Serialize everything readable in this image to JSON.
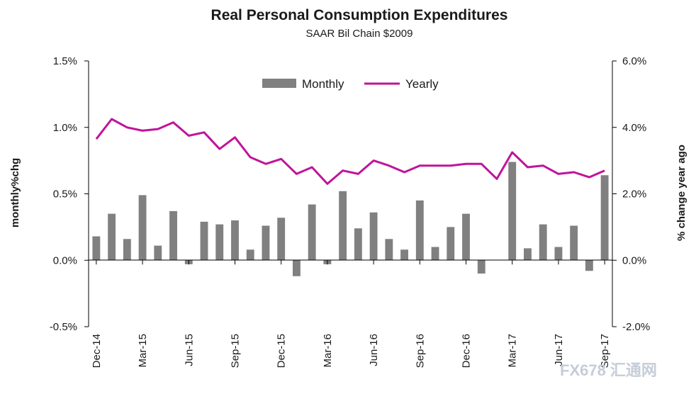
{
  "chart_data": {
    "type": "bar+line",
    "title": "Real Personal Consumption  Expenditures",
    "subtitle": "SAAR Bil Chain $2009",
    "ylabel_left": "monthly%chg",
    "ylabel_right": "% change year ago",
    "ylim_left": [
      -0.5,
      1.5
    ],
    "ylim_right": [
      -2.0,
      6.0
    ],
    "yticks_left": [
      "-0.5%",
      "0.0%",
      "0.5%",
      "1.0%",
      "1.5%"
    ],
    "yticks_right": [
      "-2.0%",
      "0.0%",
      "2.0%",
      "4.0%",
      "6.0%"
    ],
    "xtick_labels": [
      "Dec-14",
      "Mar-15",
      "Jun-15",
      "Sep-15",
      "Dec-15",
      "Mar-16",
      "Jun-16",
      "Sep-16",
      "Dec-16",
      "Mar-17",
      "Jun-17",
      "Sep-17"
    ],
    "categories": [
      "Dec-14",
      "Jan-15",
      "Feb-15",
      "Mar-15",
      "Apr-15",
      "May-15",
      "Jun-15",
      "Jul-15",
      "Aug-15",
      "Sep-15",
      "Oct-15",
      "Nov-15",
      "Dec-15",
      "Jan-16",
      "Feb-16",
      "Mar-16",
      "Apr-16",
      "May-16",
      "Jun-16",
      "Jul-16",
      "Aug-16",
      "Sep-16",
      "Oct-16",
      "Nov-16",
      "Dec-16",
      "Jan-17",
      "Feb-17",
      "Mar-17",
      "Apr-17",
      "May-17",
      "Jun-17",
      "Jul-17",
      "Aug-17",
      "Sep-17"
    ],
    "legend_position": "top-center",
    "grid": false,
    "series": [
      {
        "name": "Monthly",
        "type": "bar",
        "axis": "left",
        "color": "#808080",
        "values": [
          0.18,
          0.35,
          0.16,
          0.49,
          0.11,
          0.37,
          -0.03,
          0.29,
          0.27,
          0.3,
          0.08,
          0.26,
          0.32,
          -0.12,
          0.42,
          -0.03,
          0.52,
          0.24,
          0.36,
          0.16,
          0.08,
          0.45,
          0.1,
          0.25,
          0.35,
          -0.1,
          0.0,
          0.74,
          0.09,
          0.27,
          0.1,
          0.26,
          -0.08,
          0.64
        ]
      },
      {
        "name": "Yearly",
        "type": "line",
        "axis": "right",
        "color": "#c0149a",
        "values": [
          3.65,
          4.25,
          4.0,
          3.9,
          3.95,
          4.15,
          3.75,
          3.85,
          3.35,
          3.7,
          3.1,
          2.9,
          3.05,
          2.6,
          2.8,
          2.3,
          2.7,
          2.6,
          3.0,
          2.85,
          2.65,
          2.85,
          2.85,
          2.85,
          2.9,
          2.9,
          2.45,
          3.25,
          2.8,
          2.85,
          2.6,
          2.65,
          2.5,
          2.7
        ]
      }
    ]
  },
  "watermark": "FX678 汇通网"
}
